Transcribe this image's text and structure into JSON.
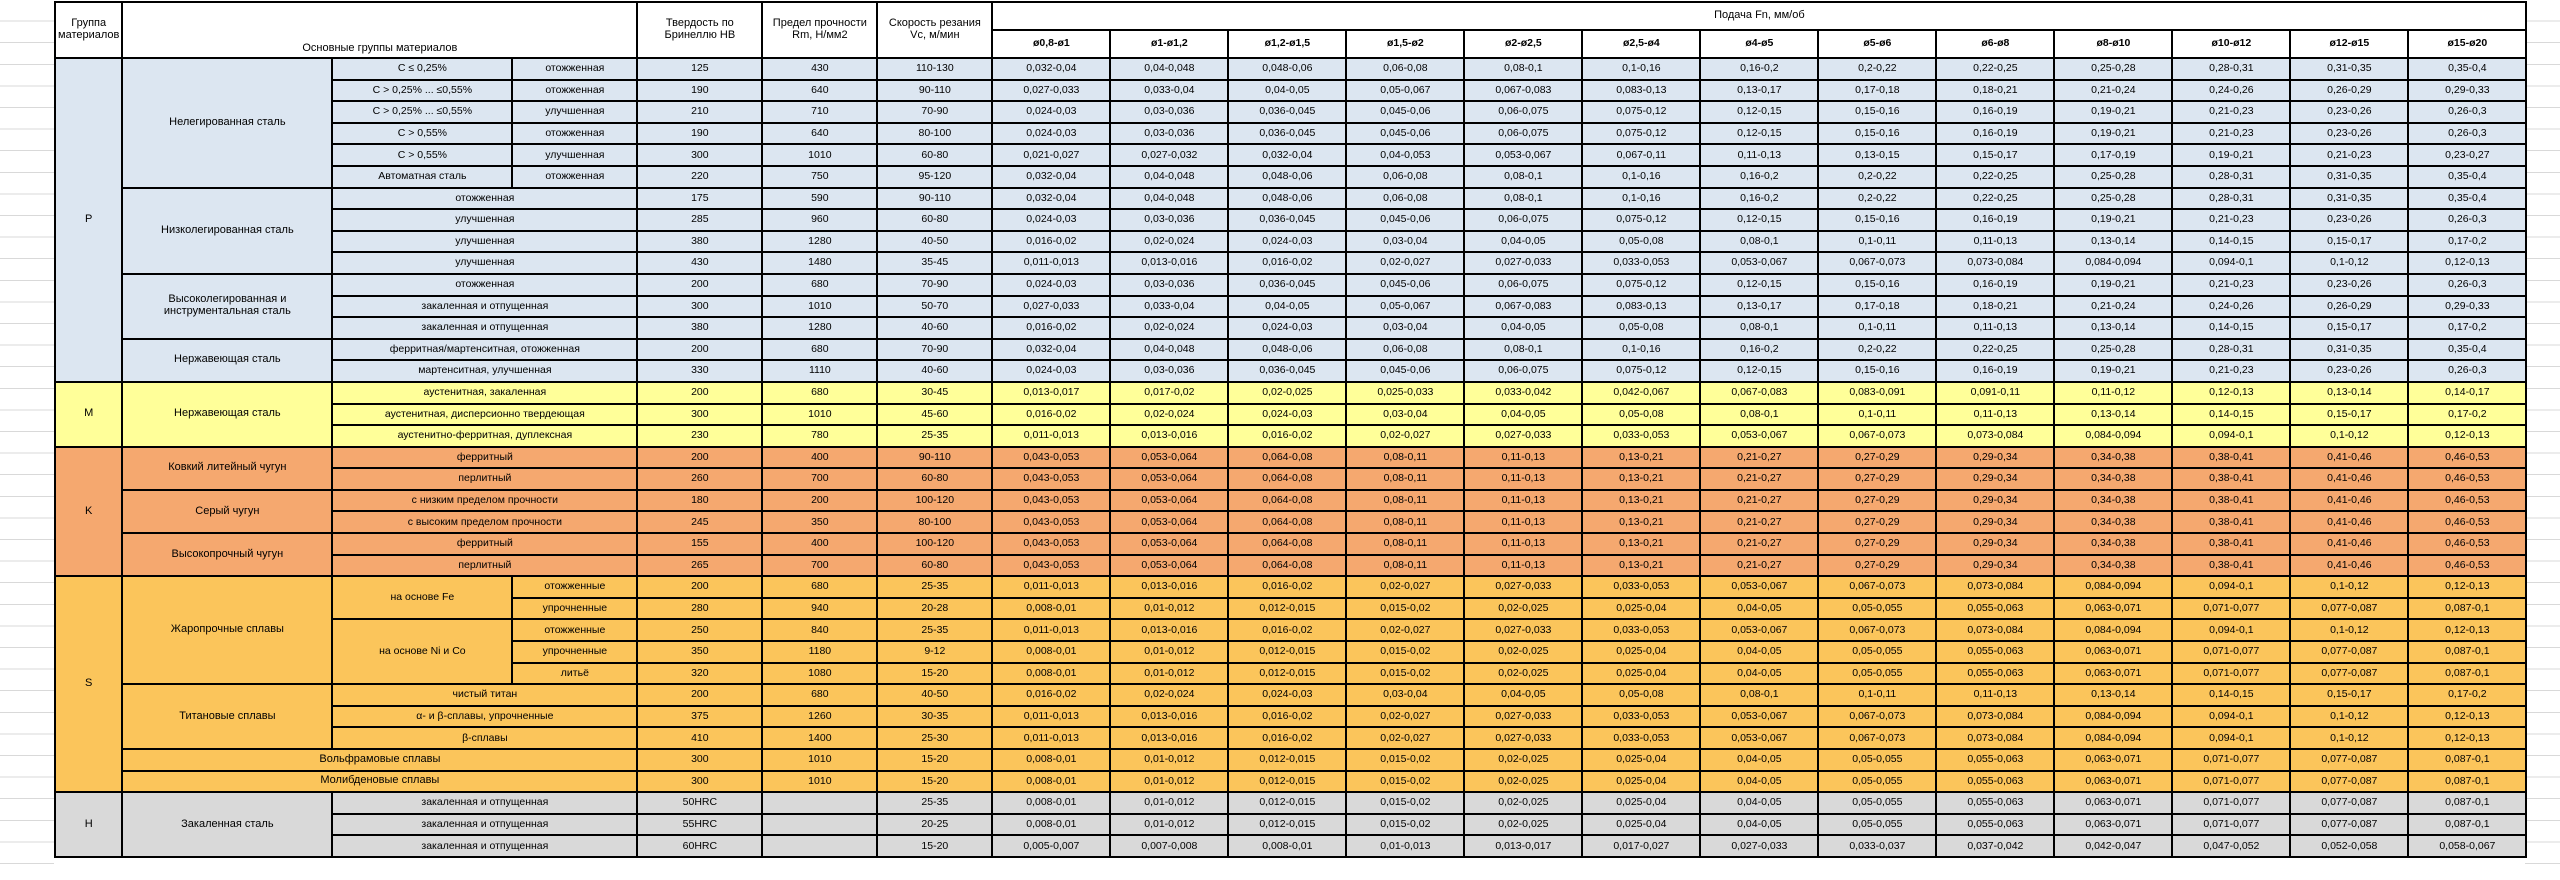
{
  "table": {
    "headers": {
      "group": "Группа материалов",
      "main_groups": "Основные группы материалов",
      "hardness": "Твердость по Бринеллю HB",
      "strength": "Предел прочности Rm, Н/мм2",
      "speed": "Скорость резания Vc, м/мин",
      "feed": "Подача Fn, мм/об",
      "diameters": [
        "ø0,8-ø1",
        "ø1-ø1,2",
        "ø1,2-ø1,5",
        "ø1,5-ø2",
        "ø2-ø2,5",
        "ø2,5-ø4",
        "ø4-ø5",
        "ø5-ø6",
        "ø6-ø8",
        "ø8-ø10",
        "ø10-ø12",
        "ø12-ø15",
        "ø15-ø20"
      ]
    },
    "colors": {
      "P": "#DCE6F1",
      "M": "#FFFF99",
      "K": "#F5A86F",
      "S": "#FBC55B",
      "H": "#D9D9D9",
      "border": "#000000",
      "gridline": "#D9D9D9"
    },
    "feed_patterns": {
      "A": [
        "0,032-0,04",
        "0,04-0,048",
        "0,048-0,06",
        "0,06-0,08",
        "0,08-0,1",
        "0,1-0,16",
        "0,16-0,2",
        "0,2-0,22",
        "0,22-0,25",
        "0,25-0,28",
        "0,28-0,31",
        "0,31-0,35",
        "0,35-0,4"
      ],
      "B": [
        "0,027-0,033",
        "0,033-0,04",
        "0,04-0,05",
        "0,05-0,067",
        "0,067-0,083",
        "0,083-0,13",
        "0,13-0,17",
        "0,17-0,18",
        "0,18-0,21",
        "0,21-0,24",
        "0,24-0,26",
        "0,26-0,29",
        "0,29-0,33"
      ],
      "C": [
        "0,024-0,03",
        "0,03-0,036",
        "0,036-0,045",
        "0,045-0,06",
        "0,06-0,075",
        "0,075-0,12",
        "0,12-0,15",
        "0,15-0,16",
        "0,16-0,19",
        "0,19-0,21",
        "0,21-0,23",
        "0,23-0,26",
        "0,26-0,3"
      ],
      "D": [
        "0,021-0,027",
        "0,027-0,032",
        "0,032-0,04",
        "0,04-0,053",
        "0,053-0,067",
        "0,067-0,11",
        "0,11-0,13",
        "0,13-0,15",
        "0,15-0,17",
        "0,17-0,19",
        "0,19-0,21",
        "0,21-0,23",
        "0,23-0,27"
      ],
      "E": [
        "0,016-0,02",
        "0,02-0,024",
        "0,024-0,03",
        "0,03-0,04",
        "0,04-0,05",
        "0,05-0,08",
        "0,08-0,1",
        "0,1-0,11",
        "0,11-0,13",
        "0,13-0,14",
        "0,14-0,15",
        "0,15-0,17",
        "0,17-0,2"
      ],
      "F": [
        "0,011-0,013",
        "0,013-0,016",
        "0,016-0,02",
        "0,02-0,027",
        "0,027-0,033",
        "0,033-0,053",
        "0,053-0,067",
        "0,067-0,073",
        "0,073-0,084",
        "0,084-0,094",
        "0,094-0,1",
        "0,1-0,12",
        "0,12-0,13"
      ],
      "G": [
        "0,013-0,017",
        "0,017-0,02",
        "0,02-0,025",
        "0,025-0,033",
        "0,033-0,042",
        "0,042-0,067",
        "0,067-0,083",
        "0,083-0,091",
        "0,091-0,11",
        "0,11-0,12",
        "0,12-0,13",
        "0,13-0,14",
        "0,14-0,17"
      ],
      "K": [
        "0,043-0,053",
        "0,053-0,064",
        "0,064-0,08",
        "0,08-0,11",
        "0,11-0,13",
        "0,13-0,21",
        "0,21-0,27",
        "0,27-0,29",
        "0,29-0,34",
        "0,34-0,38",
        "0,38-0,41",
        "0,41-0,46",
        "0,46-0,53"
      ],
      "S": [
        "0,008-0,01",
        "0,01-0,012",
        "0,012-0,015",
        "0,015-0,02",
        "0,02-0,025",
        "0,025-0,04",
        "0,04-0,05",
        "0,05-0,055",
        "0,055-0,063",
        "0,063-0,071",
        "0,071-0,077",
        "0,077-0,087",
        "0,087-0,1"
      ],
      "H": [
        "0,005-0,007",
        "0,007-0,008",
        "0,008-0,01",
        "0,01-0,013",
        "0,013-0,017",
        "0,017-0,027",
        "0,027-0,033",
        "0,033-0,037",
        "0,037-0,042",
        "0,042-0,047",
        "0,047-0,052",
        "0,052-0,058",
        "0,058-0,067"
      ]
    },
    "groups": [
      {
        "letter": "P",
        "color_key": "P",
        "materials": [
          {
            "name": "Нелегированная сталь",
            "rows": [
              {
                "class": "C ≤ 0,25%",
                "state": "отожженная",
                "hb": "125",
                "rm": "430",
                "vc": "110-130",
                "feeds": "A"
              },
              {
                "class": "C > 0,25% ... ≤0,55%",
                "state": "отожженная",
                "hb": "190",
                "rm": "640",
                "vc": "90-110",
                "feeds": "B"
              },
              {
                "class": "C > 0,25% ... ≤0,55%",
                "state": "улучшенная",
                "hb": "210",
                "rm": "710",
                "vc": "70-90",
                "feeds": "C"
              },
              {
                "class": "C > 0,55%",
                "state": "отожженная",
                "hb": "190",
                "rm": "640",
                "vc": "80-100",
                "feeds": "C"
              },
              {
                "class": "C > 0,55%",
                "state": "улучшенная",
                "hb": "300",
                "rm": "1010",
                "vc": "60-80",
                "feeds": "D"
              },
              {
                "class": "Автоматная сталь",
                "state": "отожженная",
                "hb": "220",
                "rm": "750",
                "vc": "95-120",
                "feeds": "A"
              }
            ]
          },
          {
            "name": "Низколегированная сталь",
            "rows": [
              {
                "state": "отожженная",
                "state_colspan": 2,
                "hb": "175",
                "rm": "590",
                "vc": "90-110",
                "feeds": "A"
              },
              {
                "state": "улучшенная",
                "state_colspan": 2,
                "hb": "285",
                "rm": "960",
                "vc": "60-80",
                "feeds": "C"
              },
              {
                "state": "улучшенная",
                "state_colspan": 2,
                "hb": "380",
                "rm": "1280",
                "vc": "40-50",
                "feeds": "E"
              },
              {
                "state": "улучшенная",
                "state_colspan": 2,
                "hb": "430",
                "rm": "1480",
                "vc": "35-45",
                "feeds": "F"
              }
            ]
          },
          {
            "name": "Высоколегированная и инструментальная сталь",
            "rows": [
              {
                "state": "отожженная",
                "state_colspan": 2,
                "hb": "200",
                "rm": "680",
                "vc": "70-90",
                "feeds": "C"
              },
              {
                "state": "закаленная и отпущенная",
                "state_colspan": 2,
                "hb": "300",
                "rm": "1010",
                "vc": "50-70",
                "feeds": "B"
              },
              {
                "state": "закаленная и отпущенная",
                "state_colspan": 2,
                "hb": "380",
                "rm": "1280",
                "vc": "40-60",
                "feeds": "E"
              }
            ]
          },
          {
            "name": "Нержавеющая сталь",
            "rows": [
              {
                "state": "ферритная/мартенситная, отожженная",
                "state_colspan": 2,
                "hb": "200",
                "rm": "680",
                "vc": "70-90",
                "feeds": "A"
              },
              {
                "state": "мартенситная, улучшенная",
                "state_colspan": 2,
                "hb": "330",
                "rm": "1110",
                "vc": "40-60",
                "feeds": "C"
              }
            ]
          }
        ]
      },
      {
        "letter": "M",
        "color_key": "M",
        "materials": [
          {
            "name": "Нержавеющая сталь",
            "rows": [
              {
                "state": "аустенитная, закаленная",
                "state_colspan": 2,
                "hb": "200",
                "rm": "680",
                "vc": "30-45",
                "feeds": "G"
              },
              {
                "state": "аустенитная, дисперсионно твердеющая",
                "state_colspan": 2,
                "hb": "300",
                "rm": "1010",
                "vc": "45-60",
                "feeds": "E"
              },
              {
                "state": "аустенитно-ферритная, дуплексная",
                "state_colspan": 2,
                "hb": "230",
                "rm": "780",
                "vc": "25-35",
                "feeds": "F"
              }
            ]
          }
        ]
      },
      {
        "letter": "K",
        "color_key": "K",
        "materials": [
          {
            "name": "Ковкий литейный чугун",
            "rows": [
              {
                "state": "ферритный",
                "state_colspan": 2,
                "hb": "200",
                "rm": "400",
                "vc": "90-110",
                "feeds": "K"
              },
              {
                "state": "перлитный",
                "state_colspan": 2,
                "hb": "260",
                "rm": "700",
                "vc": "60-80",
                "feeds": "K"
              }
            ]
          },
          {
            "name": "Серый чугун",
            "rows": [
              {
                "state": "с низким пределом прочности",
                "state_colspan": 2,
                "hb": "180",
                "rm": "200",
                "vc": "100-120",
                "feeds": "K"
              },
              {
                "state": "с высоким пределом прочности",
                "state_colspan": 2,
                "hb": "245",
                "rm": "350",
                "vc": "80-100",
                "feeds": "K"
              }
            ]
          },
          {
            "name": "Высокопрочный чугун",
            "rows": [
              {
                "state": "ферритный",
                "state_colspan": 2,
                "hb": "155",
                "rm": "400",
                "vc": "100-120",
                "feeds": "K"
              },
              {
                "state": "перлитный",
                "state_colspan": 2,
                "hb": "265",
                "rm": "700",
                "vc": "60-80",
                "feeds": "K"
              }
            ]
          }
        ]
      },
      {
        "letter": "S",
        "color_key": "S",
        "materials": [
          {
            "name": "Жаропрочные сплавы",
            "rows": [
              {
                "class": "на основе Fe",
                "class_rowspan": 2,
                "state": "отожженные",
                "hb": "200",
                "rm": "680",
                "vc": "25-35",
                "feeds": "F"
              },
              {
                "state": "упрочненные",
                "hb": "280",
                "rm": "940",
                "vc": "20-28",
                "feeds": "S"
              },
              {
                "class": "на основе Ni и Co",
                "class_rowspan": 3,
                "state": "отожженные",
                "hb": "250",
                "rm": "840",
                "vc": "25-35",
                "feeds": "F"
              },
              {
                "state": "упрочненные",
                "hb": "350",
                "rm": "1180",
                "vc": "9-12",
                "feeds": "S"
              },
              {
                "state": "литьё",
                "hb": "320",
                "rm": "1080",
                "vc": "15-20",
                "feeds": "S"
              }
            ]
          },
          {
            "name": "Титановые сплавы",
            "rows": [
              {
                "state": "чистый титан",
                "state_colspan": 2,
                "hb": "200",
                "rm": "680",
                "vc": "40-50",
                "feeds": "E"
              },
              {
                "state": "α- и β-сплавы, упрочненные",
                "state_colspan": 2,
                "hb": "375",
                "rm": "1260",
                "vc": "30-35",
                "feeds": "F"
              },
              {
                "state": "β-сплавы",
                "state_colspan": 2,
                "hb": "410",
                "rm": "1400",
                "vc": "25-30",
                "feeds": "F"
              }
            ]
          },
          {
            "name": "Вольфрамовые сплавы",
            "name_colspan": 3,
            "rows": [
              {
                "hb": "300",
                "rm": "1010",
                "vc": "15-20",
                "feeds": "S"
              }
            ]
          },
          {
            "name": "Молибденовые сплавы",
            "name_colspan": 3,
            "rows": [
              {
                "hb": "300",
                "rm": "1010",
                "vc": "15-20",
                "feeds": "S"
              }
            ]
          }
        ]
      },
      {
        "letter": "H",
        "color_key": "H",
        "materials": [
          {
            "name": "Закаленная сталь",
            "rows": [
              {
                "state": "закаленная и отпущенная",
                "state_colspan": 2,
                "hb": "50HRC",
                "rm": "",
                "vc": "25-35",
                "feeds": "S"
              },
              {
                "state": "закаленная и отпущенная",
                "state_colspan": 2,
                "hb": "55HRC",
                "rm": "",
                "vc": "20-25",
                "feeds": "S"
              },
              {
                "state": "закаленная и отпущенная",
                "state_colspan": 2,
                "hb": "60HRC",
                "rm": "",
                "vc": "15-20",
                "feeds": "H"
              }
            ]
          }
        ]
      }
    ]
  }
}
